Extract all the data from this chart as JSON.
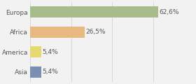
{
  "categories": [
    "Europa",
    "Africa",
    "America",
    "Asia"
  ],
  "values": [
    62.6,
    26.5,
    5.4,
    5.4
  ],
  "labels": [
    "62,6%",
    "26,5%",
    "5,4%",
    "5,4%"
  ],
  "bar_colors": [
    "#a8bc8a",
    "#e8b882",
    "#e8d870",
    "#7b8fb5"
  ],
  "background_color": "#f2f2f2",
  "xlim": [
    0,
    80
  ],
  "label_fontsize": 6.5,
  "category_fontsize": 6.5,
  "figsize": [
    2.8,
    1.2
  ],
  "dpi": 100
}
